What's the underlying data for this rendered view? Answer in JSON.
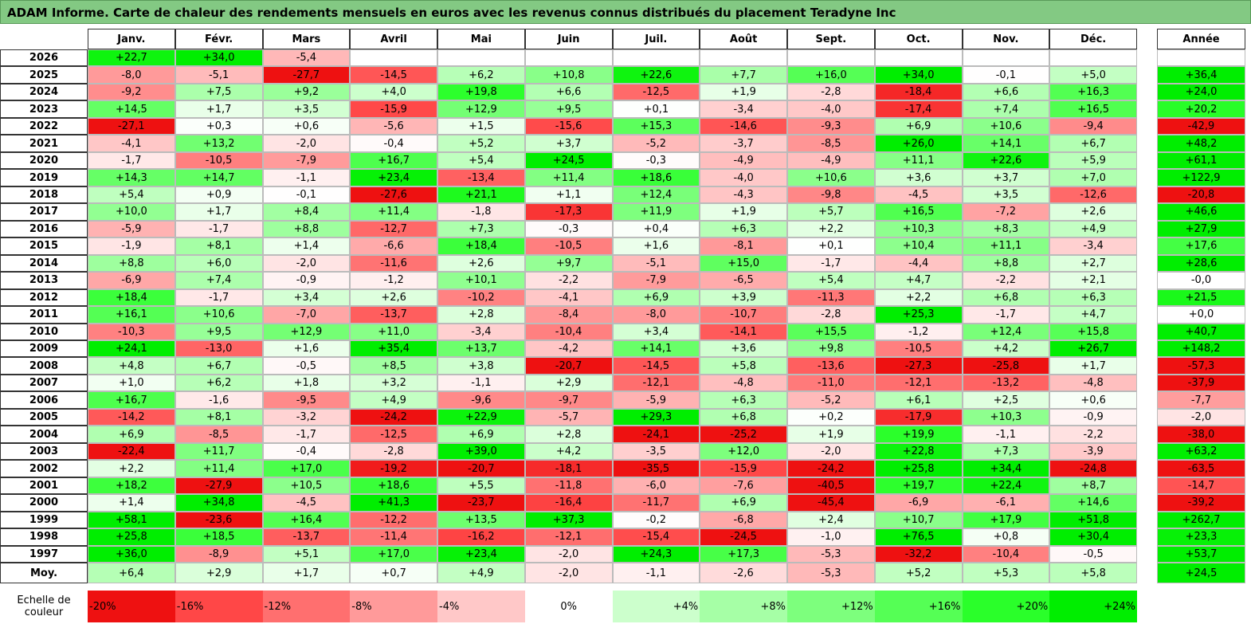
{
  "title": "ADAM Informe. Carte de chaleur des rendements mensuels en euros avec les revenus connus distribués du placement Teradyne Inc",
  "table": {
    "columns": [
      "Janv.",
      "Févr.",
      "Mars",
      "Avril",
      "Mai",
      "Juin",
      "Juil.",
      "Août",
      "Sept.",
      "Oct.",
      "Nov.",
      "Déc."
    ],
    "year_header": "Année",
    "rows": [
      {
        "label": "2026",
        "months": [
          "+22,7",
          "+34,0",
          "-5,4",
          null,
          null,
          null,
          null,
          null,
          null,
          null,
          null,
          null
        ],
        "year": null
      },
      {
        "label": "2025",
        "months": [
          "-8,0",
          "-5,1",
          "-27,7",
          "-14,5",
          "+6,2",
          "+10,8",
          "+22,6",
          "+7,7",
          "+16,0",
          "+34,0",
          "-0,1",
          "+5,0"
        ],
        "year": "+36,4"
      },
      {
        "label": "2024",
        "months": [
          "-9,2",
          "+7,5",
          "+9,2",
          "+4,0",
          "+19,8",
          "+6,6",
          "-12,5",
          "+1,9",
          "-2,8",
          "-18,4",
          "+6,6",
          "+16,3"
        ],
        "year": "+24,0"
      },
      {
        "label": "2023",
        "months": [
          "+14,5",
          "+1,7",
          "+3,5",
          "-15,9",
          "+12,9",
          "+9,5",
          "+0,1",
          "-3,4",
          "-4,0",
          "-17,4",
          "+7,4",
          "+16,5"
        ],
        "year": "+20,2"
      },
      {
        "label": "2022",
        "months": [
          "-27,1",
          "+0,3",
          "+0,6",
          "-5,6",
          "+1,5",
          "-15,6",
          "+15,3",
          "-14,6",
          "-9,3",
          "+6,9",
          "+10,6",
          "-9,4"
        ],
        "year": "-42,9"
      },
      {
        "label": "2021",
        "months": [
          "-4,1",
          "+13,2",
          "-2,0",
          "-0,4",
          "+5,2",
          "+3,7",
          "-5,2",
          "-3,7",
          "-8,5",
          "+26,0",
          "+14,1",
          "+6,7"
        ],
        "year": "+48,2"
      },
      {
        "label": "2020",
        "months": [
          "-1,7",
          "-10,5",
          "-7,9",
          "+16,7",
          "+5,4",
          "+24,5",
          "-0,3",
          "-4,9",
          "-4,9",
          "+11,1",
          "+22,6",
          "+5,9"
        ],
        "year": "+61,1"
      },
      {
        "label": "2019",
        "months": [
          "+14,3",
          "+14,7",
          "-1,1",
          "+23,4",
          "-13,4",
          "+11,4",
          "+18,6",
          "-4,0",
          "+10,6",
          "+3,6",
          "+3,7",
          "+7,0"
        ],
        "year": "+122,9"
      },
      {
        "label": "2018",
        "months": [
          "+5,4",
          "+0,9",
          "-0,1",
          "-27,6",
          "+21,1",
          "+1,1",
          "+12,4",
          "-4,3",
          "-9,8",
          "-4,5",
          "+3,5",
          "-12,6"
        ],
        "year": "-20,8"
      },
      {
        "label": "2017",
        "months": [
          "+10,0",
          "+1,7",
          "+8,4",
          "+11,4",
          "-1,8",
          "-17,3",
          "+11,9",
          "+1,9",
          "+5,7",
          "+16,5",
          "-7,2",
          "+2,6"
        ],
        "year": "+46,6"
      },
      {
        "label": "2016",
        "months": [
          "-5,9",
          "-1,7",
          "+8,8",
          "-12,7",
          "+7,3",
          "-0,3",
          "+0,4",
          "+6,3",
          "+2,2",
          "+10,3",
          "+8,3",
          "+4,9"
        ],
        "year": "+27,9"
      },
      {
        "label": "2015",
        "months": [
          "-1,9",
          "+8,1",
          "+1,4",
          "-6,6",
          "+18,4",
          "-10,5",
          "+1,6",
          "-8,1",
          "+0,1",
          "+10,4",
          "+11,1",
          "-3,4"
        ],
        "year": "+17,6"
      },
      {
        "label": "2014",
        "months": [
          "+8,8",
          "+6,0",
          "-2,0",
          "-11,6",
          "+2,6",
          "+9,7",
          "-5,1",
          "+15,0",
          "-1,7",
          "-4,4",
          "+8,8",
          "+2,7"
        ],
        "year": "+28,6"
      },
      {
        "label": "2013",
        "months": [
          "-6,9",
          "+7,4",
          "-0,9",
          "-1,2",
          "+10,1",
          "-2,2",
          "-7,9",
          "-6,5",
          "+5,4",
          "+4,7",
          "-2,2",
          "+2,1"
        ],
        "year": "-0,0"
      },
      {
        "label": "2012",
        "months": [
          "+18,4",
          "-1,7",
          "+3,4",
          "+2,6",
          "-10,2",
          "-4,1",
          "+6,9",
          "+3,9",
          "-11,3",
          "+2,2",
          "+6,8",
          "+6,3"
        ],
        "year": "+21,5"
      },
      {
        "label": "2011",
        "months": [
          "+16,1",
          "+10,6",
          "-7,0",
          "-13,7",
          "+2,8",
          "-8,4",
          "-8,0",
          "-10,7",
          "-2,8",
          "+25,3",
          "-1,7",
          "+4,7"
        ],
        "year": "+0,0"
      },
      {
        "label": "2010",
        "months": [
          "-10,3",
          "+9,5",
          "+12,9",
          "+11,0",
          "-3,4",
          "-10,4",
          "+3,4",
          "-14,1",
          "+15,5",
          "-1,2",
          "+12,4",
          "+15,8"
        ],
        "year": "+40,7"
      },
      {
        "label": "2009",
        "months": [
          "+24,1",
          "-13,0",
          "+1,6",
          "+35,4",
          "+13,7",
          "-4,2",
          "+14,1",
          "+3,6",
          "+9,8",
          "-10,5",
          "+4,2",
          "+26,7"
        ],
        "year": "+148,2"
      },
      {
        "label": "2008",
        "months": [
          "+4,8",
          "+6,7",
          "-0,5",
          "+8,5",
          "+3,8",
          "-20,7",
          "-14,5",
          "+5,8",
          "-13,6",
          "-27,3",
          "-25,8",
          "+1,7"
        ],
        "year": "-57,3"
      },
      {
        "label": "2007",
        "months": [
          "+1,0",
          "+6,2",
          "+1,8",
          "+3,2",
          "-1,1",
          "+2,9",
          "-12,1",
          "-4,8",
          "-11,0",
          "-12,1",
          "-13,2",
          "-4,8"
        ],
        "year": "-37,9"
      },
      {
        "label": "2006",
        "months": [
          "+16,7",
          "-1,6",
          "-9,5",
          "+4,9",
          "-9,6",
          "-9,7",
          "-5,9",
          "+6,3",
          "-5,2",
          "+6,1",
          "+2,5",
          "+0,6"
        ],
        "year": "-7,7"
      },
      {
        "label": "2005",
        "months": [
          "-14,2",
          "+8,1",
          "-3,2",
          "-24,2",
          "+22,9",
          "-5,7",
          "+29,3",
          "+6,8",
          "+0,2",
          "-17,9",
          "+10,3",
          "-0,9"
        ],
        "year": "-2,0"
      },
      {
        "label": "2004",
        "months": [
          "+6,9",
          "-8,5",
          "-1,7",
          "-12,5",
          "+6,9",
          "+2,8",
          "-24,1",
          "-25,2",
          "+1,9",
          "+19,9",
          "-1,1",
          "-2,2"
        ],
        "year": "-38,0"
      },
      {
        "label": "2003",
        "months": [
          "-22,4",
          "+11,7",
          "-0,4",
          "-2,8",
          "+39,0",
          "+4,2",
          "-3,5",
          "+12,0",
          "-2,0",
          "+22,8",
          "+7,3",
          "-3,9"
        ],
        "year": "+63,2"
      },
      {
        "label": "2002",
        "months": [
          "+2,2",
          "+11,4",
          "+17,0",
          "-19,2",
          "-20,7",
          "-18,1",
          "-35,5",
          "-15,9",
          "-24,2",
          "+25,8",
          "+34,4",
          "-24,8"
        ],
        "year": "-63,5"
      },
      {
        "label": "2001",
        "months": [
          "+18,2",
          "-27,9",
          "+10,5",
          "+18,6",
          "+5,5",
          "-11,8",
          "-6,0",
          "-7,6",
          "-40,5",
          "+19,7",
          "+22,4",
          "+8,7"
        ],
        "year": "-14,7"
      },
      {
        "label": "2000",
        "months": [
          "+1,4",
          "+34,8",
          "-4,5",
          "+41,3",
          "-23,7",
          "-16,4",
          "-11,7",
          "+6,9",
          "-45,4",
          "-6,9",
          "-6,1",
          "+14,6"
        ],
        "year": "-39,2"
      },
      {
        "label": "1999",
        "months": [
          "+58,1",
          "-23,6",
          "+16,4",
          "-12,2",
          "+13,5",
          "+37,3",
          "-0,2",
          "-6,8",
          "+2,4",
          "+10,7",
          "+17,9",
          "+51,8"
        ],
        "year": "+262,7"
      },
      {
        "label": "1998",
        "months": [
          "+25,8",
          "+18,5",
          "-13,7",
          "-11,4",
          "-16,2",
          "-12,1",
          "-15,4",
          "-24,5",
          "-1,0",
          "+76,5",
          "+0,8",
          "+30,4"
        ],
        "year": "+23,3"
      },
      {
        "label": "1997",
        "months": [
          "+36,0",
          "-8,9",
          "+5,1",
          "+17,0",
          "+23,4",
          "-2,0",
          "+24,3",
          "+17,3",
          "-5,3",
          "-32,2",
          "-10,4",
          "-0,5"
        ],
        "year": "+53,7"
      }
    ],
    "average": {
      "label": "Moy.",
      "months": [
        "+6,4",
        "+2,9",
        "+1,7",
        "+0,7",
        "+4,9",
        "-2,0",
        "-1,1",
        "-2,6",
        "-5,3",
        "+5,2",
        "+5,3",
        "+5,8"
      ],
      "year": "+24,5"
    }
  },
  "legend": {
    "label": "Echelle de couleur",
    "entries": [
      "-20%",
      "-16%",
      "-12%",
      "-8%",
      "-4%",
      "0%",
      "+4%",
      "+8%",
      "+12%",
      "+16%",
      "+20%",
      "+24%"
    ],
    "colors": [
      "#ee1111",
      "#ff4747",
      "#ff6f6f",
      "#ff9a9a",
      "#ffc8c8",
      "#ffffff",
      "#ccffcc",
      "#a6ffa6",
      "#7dff7d",
      "#55ff55",
      "#2aff2a",
      "#00ee00"
    ]
  }
}
